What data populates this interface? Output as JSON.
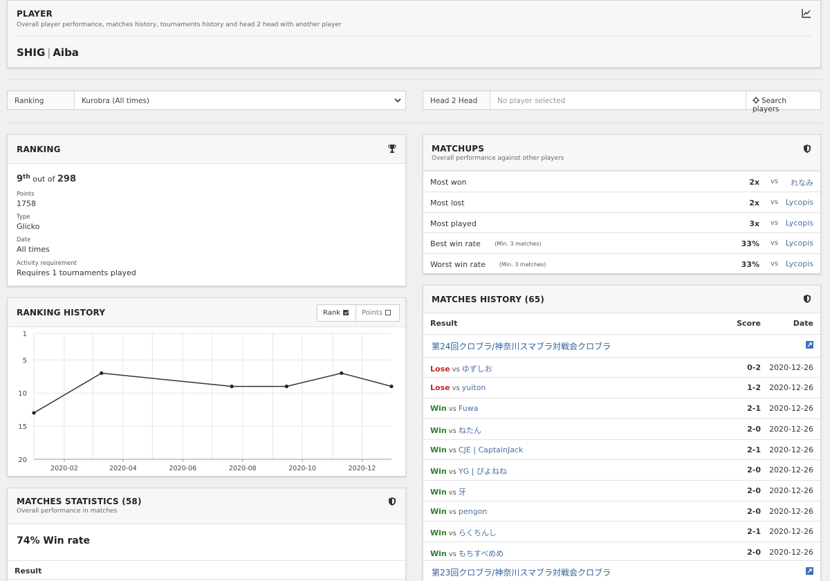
{
  "player": {
    "title": "PLAYER",
    "subtitle": "Overall player performance, matches history, tournaments history and head 2 head with another player",
    "tag": "SHIG",
    "sep": "|",
    "name": "Aiba"
  },
  "controls": {
    "ranking_label": "Ranking",
    "ranking_value": "Kurobra (All times)",
    "h2h_label": "Head 2 Head",
    "h2h_placeholder": "No player selected",
    "search_label": "Search players"
  },
  "ranking": {
    "title": "RANKING",
    "rank": "9",
    "rank_suffix": "th",
    "out_of_text": "out of",
    "total": "298",
    "fields": [
      {
        "label": "Points",
        "value": "1758"
      },
      {
        "label": "Type",
        "value": "Glicko"
      },
      {
        "label": "Date",
        "value": "All times"
      },
      {
        "label": "Activity requirement",
        "value": "Requires 1 tournaments played"
      }
    ]
  },
  "ranking_history": {
    "title": "RANKING HISTORY",
    "toggle_rank": "Rank",
    "toggle_points": "Points"
  },
  "chart_data": {
    "type": "line",
    "title": "",
    "xlabel": "",
    "ylabel": "",
    "y_reversed": true,
    "ylim": [
      1,
      20
    ],
    "yticks": [
      1,
      5,
      10,
      15,
      20
    ],
    "xticks": [
      "2020-02",
      "2020-04",
      "2020-06",
      "2020-08",
      "2020-10",
      "2020-12"
    ],
    "xlim": [
      "2020-01-01",
      "2020-12-31"
    ],
    "grid": true,
    "series": [
      {
        "x": [
          "2020-01-01",
          "2020-03-10",
          "2020-07-21",
          "2020-09-15",
          "2020-11-10",
          "2020-12-31"
        ],
        "y": [
          13,
          7,
          9,
          9,
          7,
          9
        ]
      }
    ]
  },
  "match_stats": {
    "title": "MATCHES STATISTICS (58)",
    "subtitle": "Overall performance in matches",
    "winrate": "74% Win rate",
    "result_header": "Result"
  },
  "matchups": {
    "title": "MATCHUPS",
    "subtitle": "Overall performance against other players",
    "vs": "vs",
    "rows": [
      {
        "label": "Most won",
        "note": "",
        "count": "2x",
        "player": "れなみ"
      },
      {
        "label": "Most lost",
        "note": "",
        "count": "2x",
        "player": "Lycopis"
      },
      {
        "label": "Most played",
        "note": "",
        "count": "3x",
        "player": "Lycopis"
      },
      {
        "label": "Best win rate",
        "note": "(Min. 3 matches)",
        "count": "33%",
        "player": "Lycopis"
      },
      {
        "label": "Worst win rate",
        "note": "(Min. 3 matches)",
        "count": "33%",
        "player": "Lycopis"
      }
    ]
  },
  "matches_history": {
    "title": "MATCHES HISTORY (65)",
    "col_result": "Result",
    "col_score": "Score",
    "col_date": "Date",
    "rows": [
      {
        "kind": "tournament",
        "name": "第24回クロブラ/神奈川スマブラ対戦会クロブラ"
      },
      {
        "kind": "match",
        "result": "Lose",
        "vs": "vs",
        "opponent": "ゆずしお",
        "score": "0-2",
        "date": "2020-12-26"
      },
      {
        "kind": "match",
        "result": "Lose",
        "vs": "vs",
        "opponent": "yuiton",
        "score": "1-2",
        "date": "2020-12-26"
      },
      {
        "kind": "match",
        "result": "Win",
        "vs": "vs",
        "opponent": "Fuwa",
        "score": "2-1",
        "date": "2020-12-26"
      },
      {
        "kind": "match",
        "result": "Win",
        "vs": "vs",
        "opponent": "ねたん",
        "score": "2-0",
        "date": "2020-12-26"
      },
      {
        "kind": "match",
        "result": "Win",
        "vs": "vs",
        "opponent": "CJE | CaptainJack",
        "score": "2-1",
        "date": "2020-12-26"
      },
      {
        "kind": "match",
        "result": "Win",
        "vs": "vs",
        "opponent": "YG | ぴよねね",
        "score": "2-0",
        "date": "2020-12-26"
      },
      {
        "kind": "match",
        "result": "Win",
        "vs": "vs",
        "opponent": "牙",
        "score": "2-0",
        "date": "2020-12-26"
      },
      {
        "kind": "match",
        "result": "Win",
        "vs": "vs",
        "opponent": "pengon",
        "score": "2-0",
        "date": "2020-12-26"
      },
      {
        "kind": "match",
        "result": "Win",
        "vs": "vs",
        "opponent": "らくちんし",
        "score": "2-1",
        "date": "2020-12-26"
      },
      {
        "kind": "match",
        "result": "Win",
        "vs": "vs",
        "opponent": "もちすべめめ",
        "score": "2-0",
        "date": "2020-12-26"
      },
      {
        "kind": "tournament",
        "name": "第23回クロブラ/神奈川スマブラ対戦会クロブラ"
      }
    ]
  },
  "colors": {
    "win": "#2e7d32",
    "lose": "#c62828",
    "link": "#4a6fa5"
  }
}
